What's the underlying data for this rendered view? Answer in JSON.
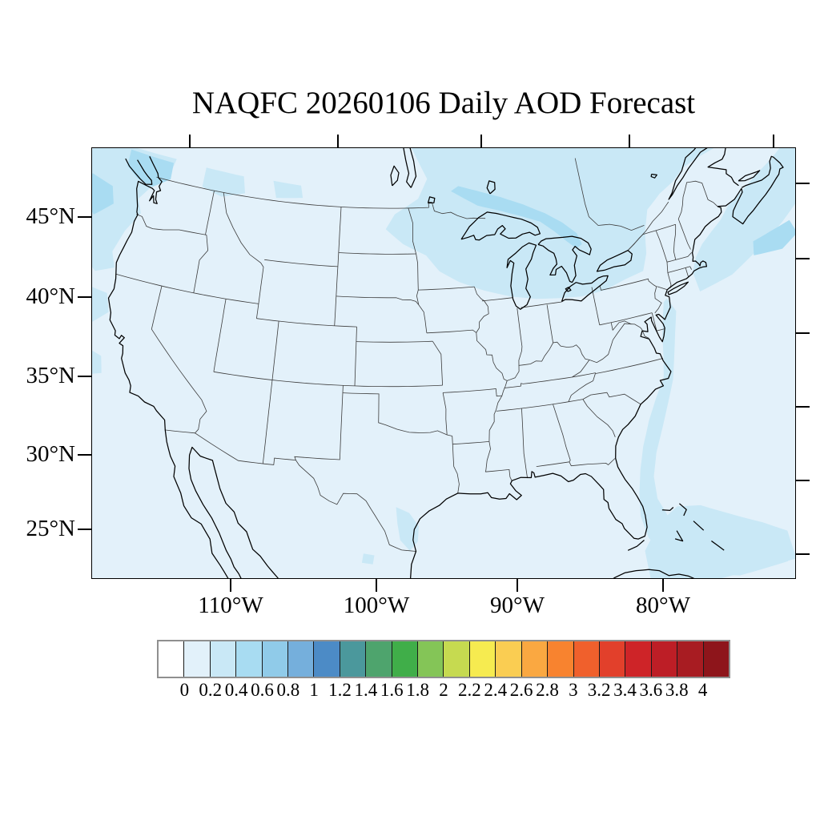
{
  "title": "NAQFC 20260106 Daily AOD Forecast",
  "axes": {
    "lat_labels": [
      "45°N",
      "40°N",
      "35°N",
      "30°N",
      "25°N"
    ],
    "lon_labels": [
      "110°W",
      "100°W",
      "90°W",
      "80°W"
    ]
  },
  "colorbar": {
    "tick_labels": [
      "0",
      "0.2",
      "0.4",
      "0.6",
      "0.8",
      "1",
      "1.2",
      "1.4",
      "1.6",
      "1.8",
      "2",
      "2.2",
      "2.4",
      "2.6",
      "2.8",
      "3",
      "3.2",
      "3.4",
      "3.6",
      "3.8",
      "4"
    ],
    "colors": [
      "#ffffff",
      "#e2f1fa",
      "#c9e8f6",
      "#a8dcf2",
      "#90cbe9",
      "#75afdc",
      "#4c8bc6",
      "#4b989c",
      "#4ea46d",
      "#40ae49",
      "#84c557",
      "#c6da50",
      "#f6eb50",
      "#facd52",
      "#faa841",
      "#f8832f",
      "#f0602c",
      "#e2402b",
      "#ce2428",
      "#bd1e26",
      "#a81c22",
      "#8e151b"
    ]
  },
  "colors": {
    "background": "#ffffff",
    "aod_0_02": "#e3f1fa",
    "aod_02_04": "#c9e8f6",
    "aod_04_06": "#a9dcf2",
    "coastline": "#000000",
    "state_border": "#3c3c3c"
  },
  "chart_data": {
    "type": "heatmap",
    "title": "NAQFC 20260106 Daily AOD Forecast",
    "xlabel": "",
    "ylabel": "",
    "x_tick_labels": [
      "110°W",
      "100°W",
      "90°W",
      "80°W"
    ],
    "y_tick_labels": [
      "45°N",
      "40°N",
      "35°N",
      "30°N",
      "25°N"
    ],
    "colorbar_values": [
      0,
      0.2,
      0.4,
      0.6,
      0.8,
      1,
      1.2,
      1.4,
      1.6,
      1.8,
      2,
      2.2,
      2.4,
      2.6,
      2.8,
      3,
      3.2,
      3.4,
      3.6,
      3.8,
      4
    ],
    "colorbar_colors": [
      "#ffffff",
      "#e2f1fa",
      "#c9e8f6",
      "#a8dcf2",
      "#90cbe9",
      "#75afdc",
      "#4c8bc6",
      "#4b989c",
      "#4ea46d",
      "#40ae49",
      "#84c557",
      "#c6da50",
      "#f6eb50",
      "#facd52",
      "#faa841",
      "#f8832f",
      "#f0602c",
      "#e2402b",
      "#ce2428",
      "#bd1e26",
      "#a81c22",
      "#8e151b"
    ],
    "legend_position": "bottom",
    "grid": false,
    "regions": [
      {
        "name": "Continental US background",
        "aod": "0-0.2"
      },
      {
        "name": "Pacific Northwest / British Columbia coast",
        "aod": "0.2-0.6"
      },
      {
        "name": "Offshore Washington / Puget Sound",
        "aod": "0.4-0.6"
      },
      {
        "name": "Upper Midwest / Great Lakes / southern Ontario",
        "aod": "0.2-0.4"
      },
      {
        "name": "North of Lake Superior (Ontario)",
        "aod": "0.4-0.6"
      },
      {
        "name": "Northeast / Gulf of St Lawrence / Gulf of Maine",
        "aod": "0.2-0.4"
      },
      {
        "name": "Offshore south of Nova Scotia",
        "aod": "0.4-0.6"
      },
      {
        "name": "Atlantic offshore band along East Coast to Bahamas",
        "aod": "0.2-0.4"
      },
      {
        "name": "South Texas Gulf coast",
        "aod": "0.2-0.4"
      },
      {
        "name": "Northern California offshore patches",
        "aod": "0.2-0.4"
      }
    ]
  }
}
